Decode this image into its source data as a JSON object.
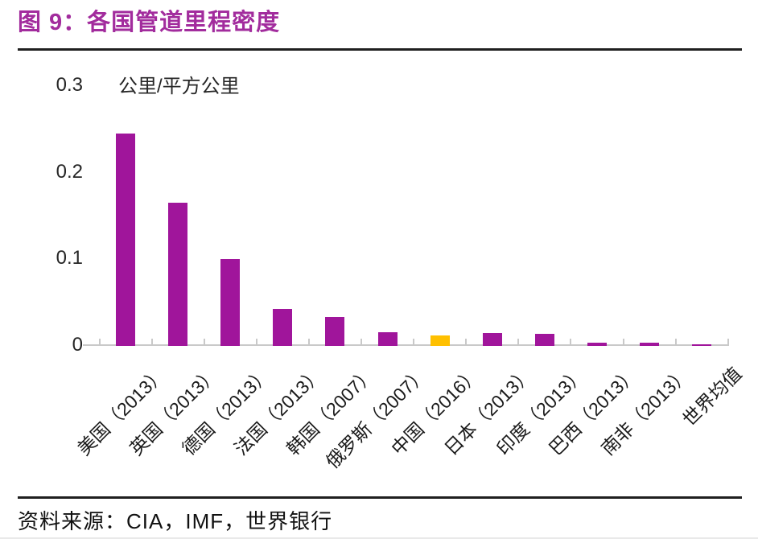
{
  "header": {
    "figure_title": "图 9：各国管道里程密度",
    "accent_color": "#A22C9D"
  },
  "chart": {
    "unit_label": "公里/平方公里",
    "y_ticks": [
      {
        "label": "0.3",
        "value": 0.3
      },
      {
        "label": "0.2",
        "value": 0.2
      },
      {
        "label": "0.1",
        "value": 0.1
      },
      {
        "label": "0",
        "value": 0
      }
    ]
  },
  "chart_data": {
    "type": "bar",
    "title": "各国管道里程密度",
    "unit": "公里/平方公里",
    "categories": [
      "美国（2013）",
      "英国（2013）",
      "德国（2013）",
      "法国（2013）",
      "韩国（2007）",
      "俄罗斯（2007）",
      "中国（2016）",
      "日本（2013）",
      "印度（2013）",
      "巴西（2013）",
      "南非（2013）",
      "世界均值"
    ],
    "values": [
      0.245,
      0.165,
      0.1,
      0.043,
      0.033,
      0.016,
      0.012,
      0.015,
      0.014,
      0.004,
      0.004,
      0.002
    ],
    "highlight_index": 6,
    "bar_color": "#A0159B",
    "highlight_color": "#FFC000",
    "axis_color": "#C9C9C9",
    "ylim": [
      0,
      0.3
    ],
    "grid": false,
    "legend": false,
    "x_label_rotation": -45
  },
  "footer": {
    "source": "资料来源：CIA，IMF，世界银行"
  }
}
